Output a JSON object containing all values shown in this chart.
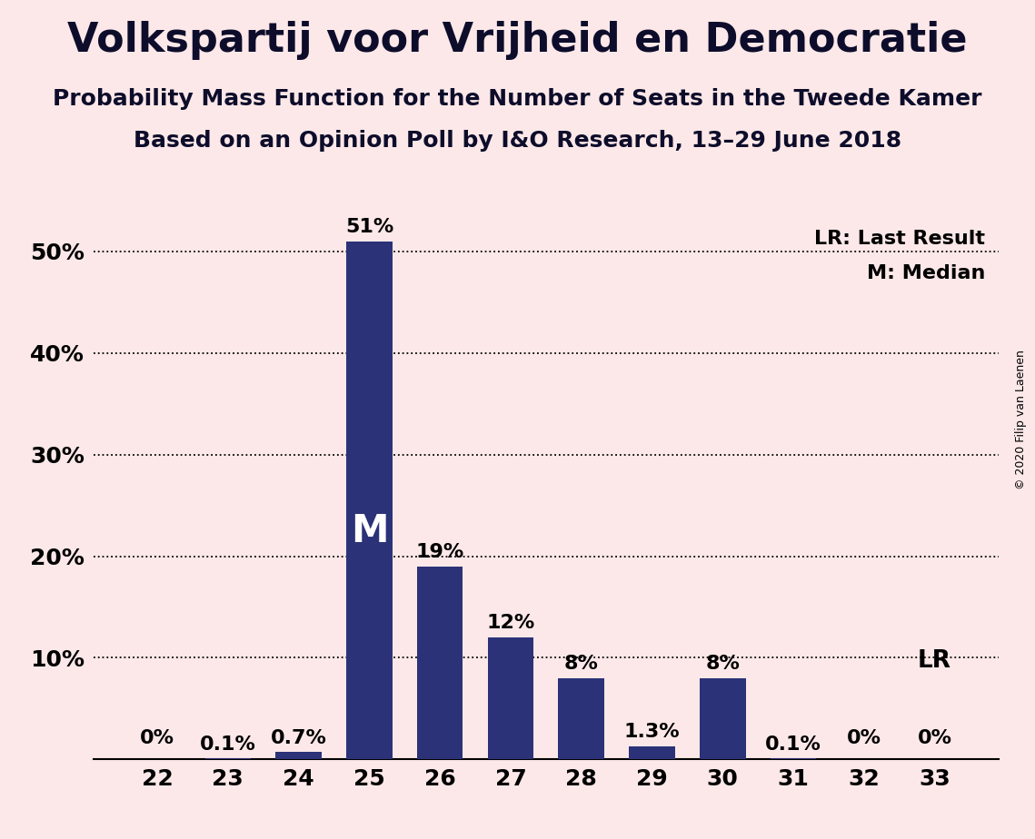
{
  "title": "Volkspartij voor Vrijheid en Democratie",
  "subtitle1": "Probability Mass Function for the Number of Seats in the Tweede Kamer",
  "subtitle2": "Based on an Opinion Poll by I&O Research, 13–29 June 2018",
  "copyright": "© 2020 Filip van Laenen",
  "categories": [
    22,
    23,
    24,
    25,
    26,
    27,
    28,
    29,
    30,
    31,
    32,
    33
  ],
  "values": [
    0.0,
    0.1,
    0.7,
    51.0,
    19.0,
    12.0,
    8.0,
    1.3,
    8.0,
    0.1,
    0.0,
    0.0
  ],
  "labels": [
    "0%",
    "0.1%",
    "0.7%",
    "51%",
    "19%",
    "12%",
    "8%",
    "1.3%",
    "8%",
    "0.1%",
    "0%",
    "0%"
  ],
  "bar_color": "#2b3278",
  "background_color": "#fce8e8",
  "median_seat": 25,
  "lr_seat": 33,
  "median_label": "M",
  "ylim": [
    0,
    57
  ],
  "yticks": [
    0,
    10,
    20,
    30,
    40,
    50
  ],
  "ytick_labels": [
    "",
    "10%",
    "20%",
    "30%",
    "40%",
    "50%"
  ],
  "title_fontsize": 32,
  "subtitle_fontsize": 18,
  "label_fontsize": 16,
  "tick_fontsize": 18,
  "legend_fontsize": 16
}
